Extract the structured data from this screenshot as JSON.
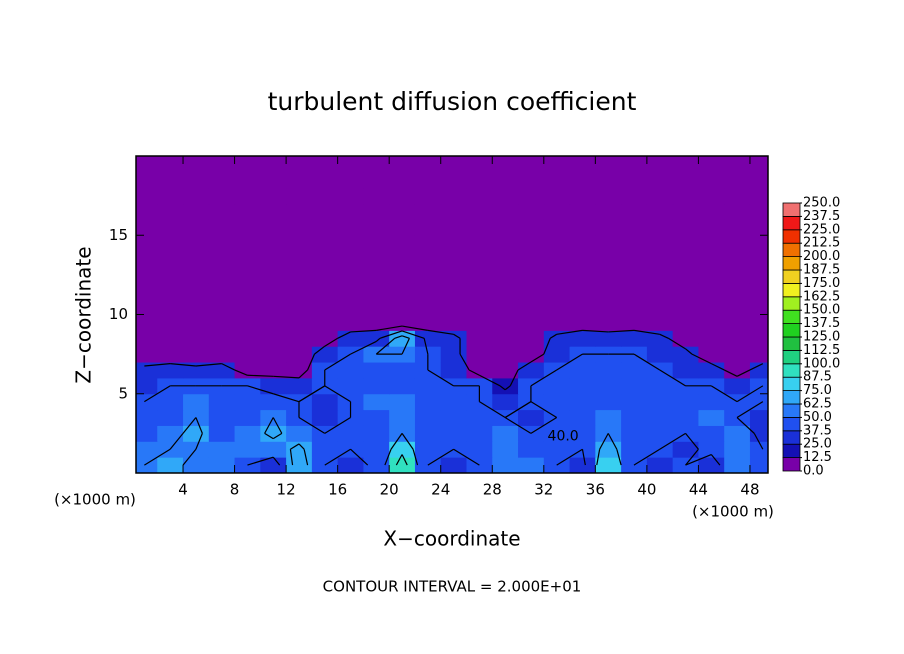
{
  "chart_data": {
    "type": "contour",
    "title": "turbulent diffusion coefficient",
    "x_label": "X−coordinate",
    "y_label": "Z−coordinate",
    "x_unit": "(×1000 m)",
    "contour_note": "CONTOUR INTERVAL = 2.000E+01",
    "contour_interval": 20,
    "xlim": [
      0.35,
      49.4
    ],
    "ylim": [
      0,
      20
    ],
    "xticks": [
      4,
      8,
      12,
      16,
      20,
      24,
      28,
      32,
      36,
      40,
      44,
      48
    ],
    "yticks": [
      5,
      10,
      15
    ],
    "grid": false,
    "x": [
      1,
      3,
      5,
      7,
      9,
      11,
      13,
      15,
      17,
      19,
      21,
      23,
      25,
      27,
      29,
      31,
      33,
      35,
      37,
      39,
      41,
      43,
      45,
      47,
      49
    ],
    "y": [
      0.5,
      1.5,
      2.5,
      3.5,
      4.5,
      5.5,
      6.5,
      7.5,
      8.5,
      9.5,
      10.5,
      11.5,
      12.5,
      13.5,
      14.5,
      15.5,
      16.5,
      17.5,
      18.5,
      19.5
    ],
    "z": [
      [
        60,
        65,
        55,
        60,
        40,
        30,
        70,
        40,
        30,
        45,
        90,
        40,
        35,
        40,
        60,
        55,
        40,
        35,
        80,
        40,
        35,
        40,
        30,
        60,
        40
      ],
      [
        55,
        60,
        60,
        50,
        55,
        50,
        65,
        40,
        40,
        40,
        75,
        40,
        40,
        45,
        50,
        40,
        45,
        40,
        70,
        40,
        40,
        35,
        45,
        55,
        40
      ],
      [
        45,
        55,
        65,
        45,
        50,
        65,
        50,
        40,
        45,
        40,
        60,
        40,
        40,
        40,
        55,
        40,
        40,
        45,
        60,
        40,
        40,
        40,
        45,
        50,
        35
      ],
      [
        40,
        45,
        60,
        40,
        45,
        60,
        40,
        35,
        40,
        45,
        55,
        40,
        40,
        45,
        40,
        35,
        40,
        40,
        50,
        40,
        40,
        40,
        55,
        40,
        35
      ],
      [
        40,
        40,
        50,
        40,
        40,
        45,
        40,
        35,
        40,
        50,
        50,
        40,
        40,
        40,
        35,
        40,
        40,
        40,
        45,
        40,
        40,
        40,
        45,
        40,
        40
      ],
      [
        35,
        40,
        40,
        40,
        40,
        35,
        30,
        40,
        40,
        45,
        45,
        40,
        40,
        40,
        15,
        40,
        40,
        40,
        45,
        40,
        40,
        40,
        40,
        35,
        40
      ],
      [
        25,
        30,
        25,
        30,
        10,
        10,
        10,
        40,
        40,
        45,
        40,
        40,
        35,
        10,
        5,
        35,
        40,
        40,
        45,
        40,
        40,
        35,
        30,
        10,
        30
      ],
      [
        5,
        5,
        5,
        5,
        5,
        5,
        5,
        30,
        40,
        60,
        60,
        40,
        25,
        5,
        5,
        5,
        35,
        40,
        40,
        40,
        35,
        25,
        5,
        5,
        5
      ],
      [
        5,
        5,
        5,
        5,
        5,
        5,
        5,
        10,
        30,
        35,
        70,
        35,
        25,
        5,
        5,
        5,
        25,
        35,
        30,
        35,
        25,
        10,
        5,
        5,
        5
      ],
      [
        5,
        5,
        5,
        5,
        5,
        5,
        5,
        5,
        5,
        5,
        5,
        5,
        5,
        5,
        5,
        5,
        5,
        5,
        5,
        5,
        5,
        5,
        5,
        5,
        5
      ],
      [
        5,
        5,
        5,
        5,
        5,
        5,
        5,
        5,
        5,
        5,
        5,
        5,
        5,
        5,
        5,
        5,
        5,
        5,
        5,
        5,
        5,
        5,
        5,
        5,
        5
      ],
      [
        5,
        5,
        5,
        5,
        5,
        5,
        5,
        5,
        5,
        5,
        5,
        5,
        5,
        5,
        5,
        5,
        5,
        5,
        5,
        5,
        5,
        5,
        5,
        5,
        5
      ],
      [
        5,
        5,
        5,
        5,
        5,
        5,
        5,
        5,
        5,
        5,
        5,
        5,
        5,
        5,
        5,
        5,
        5,
        5,
        5,
        5,
        5,
        5,
        5,
        5,
        5
      ],
      [
        5,
        5,
        5,
        5,
        5,
        5,
        5,
        5,
        5,
        5,
        5,
        5,
        5,
        5,
        5,
        5,
        5,
        5,
        5,
        5,
        5,
        5,
        5,
        5,
        5
      ],
      [
        5,
        5,
        5,
        5,
        5,
        5,
        5,
        5,
        5,
        5,
        5,
        5,
        5,
        5,
        5,
        5,
        5,
        5,
        5,
        5,
        5,
        5,
        5,
        5,
        5
      ],
      [
        5,
        5,
        5,
        5,
        5,
        5,
        5,
        5,
        5,
        5,
        5,
        5,
        5,
        5,
        5,
        5,
        5,
        5,
        5,
        5,
        5,
        5,
        5,
        5,
        5
      ],
      [
        5,
        5,
        5,
        5,
        5,
        5,
        5,
        5,
        5,
        5,
        5,
        5,
        5,
        5,
        5,
        5,
        5,
        5,
        5,
        5,
        5,
        5,
        5,
        5,
        5
      ],
      [
        5,
        5,
        5,
        5,
        5,
        5,
        5,
        5,
        5,
        5,
        5,
        5,
        5,
        5,
        5,
        5,
        5,
        5,
        5,
        5,
        5,
        5,
        5,
        5,
        5
      ],
      [
        5,
        5,
        5,
        5,
        5,
        5,
        5,
        5,
        5,
        5,
        5,
        5,
        5,
        5,
        5,
        5,
        5,
        5,
        5,
        5,
        5,
        5,
        5,
        5,
        5
      ],
      [
        5,
        5,
        5,
        5,
        5,
        5,
        5,
        5,
        5,
        5,
        5,
        5,
        5,
        5,
        5,
        5,
        5,
        5,
        5,
        5,
        5,
        5,
        5,
        5,
        5
      ]
    ],
    "annotations": [
      {
        "text": "40.0",
        "x": 33.5,
        "y": 2.3
      }
    ],
    "colorbar": {
      "ticks": [
        {
          "value": 0,
          "label": "0.0"
        },
        {
          "value": 12.5,
          "label": "12.5"
        },
        {
          "value": 25,
          "label": "25.0"
        },
        {
          "value": 37.5,
          "label": "37.5"
        },
        {
          "value": 50,
          "label": "50.0"
        },
        {
          "value": 62.5,
          "label": "62.5"
        },
        {
          "value": 75,
          "label": "75.0"
        },
        {
          "value": 87.5,
          "label": "87.5"
        },
        {
          "value": 100,
          "label": "100.0"
        },
        {
          "value": 112.5,
          "label": "112.5"
        },
        {
          "value": 125,
          "label": "125.0"
        },
        {
          "value": 137.5,
          "label": "137.5"
        },
        {
          "value": 150,
          "label": "150.0"
        },
        {
          "value": 162.5,
          "label": "162.5"
        },
        {
          "value": 175,
          "label": "175.0"
        },
        {
          "value": 187.5,
          "label": "187.5"
        },
        {
          "value": 200,
          "label": "200.0"
        },
        {
          "value": 212.5,
          "label": "212.5"
        },
        {
          "value": 225,
          "label": "225.0"
        },
        {
          "value": 237.5,
          "label": "237.5"
        },
        {
          "value": 250,
          "label": "250.0"
        }
      ],
      "colors": [
        "#7800a8",
        "#1410b4",
        "#1a30d8",
        "#2050f0",
        "#2878f8",
        "#30a8f8",
        "#38d0f0",
        "#30e0c0",
        "#20d080",
        "#20c040",
        "#20d020",
        "#40e020",
        "#a0f020",
        "#f0f020",
        "#f0d020",
        "#f0a000",
        "#f07000",
        "#f03000",
        "#f01818",
        "#f07070"
      ]
    }
  }
}
